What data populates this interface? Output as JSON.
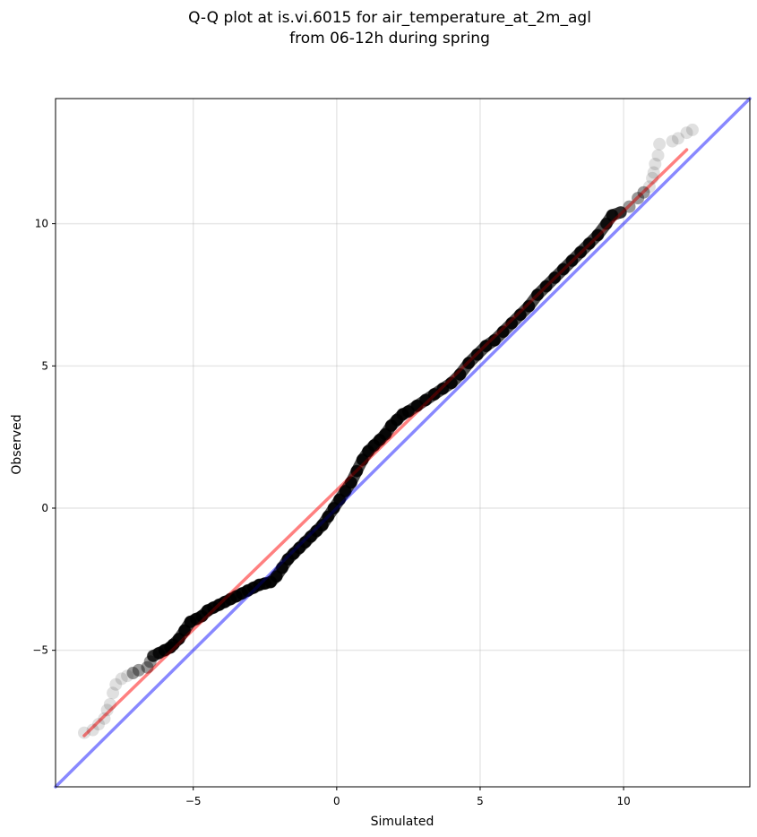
{
  "chart_data": {
    "type": "scatter",
    "title": "Q-Q plot at is.vi.6015 for air_temperature_at_2m_agl",
    "subtitle": "from 06-12h during spring",
    "xlabel": "Simulated",
    "ylabel": "Observed",
    "xlim": [
      -9.8,
      14.4
    ],
    "ylim": [
      -9.8,
      14.4
    ],
    "xticks": [
      -5,
      0,
      5,
      10
    ],
    "yticks": [
      -5,
      0,
      5,
      10
    ],
    "xtick_labels": [
      "−5",
      "0",
      "5",
      "10"
    ],
    "ytick_labels": [
      "−5",
      "0",
      "5",
      "10"
    ],
    "grid": true,
    "series": [
      {
        "kind": "quantile_points",
        "color": "#000000",
        "points": [
          [
            -8.8,
            -7.9
          ],
          [
            -8.5,
            -7.8
          ],
          [
            -8.3,
            -7.6
          ],
          [
            -8.1,
            -7.4
          ],
          [
            -8.0,
            -7.1
          ],
          [
            -7.9,
            -6.9
          ],
          [
            -7.8,
            -6.5
          ],
          [
            -7.7,
            -6.2
          ],
          [
            -7.5,
            -6.0
          ],
          [
            -7.3,
            -5.9
          ],
          [
            -7.1,
            -5.8
          ],
          [
            -6.9,
            -5.7
          ],
          [
            -6.6,
            -5.6
          ],
          [
            -6.5,
            -5.4
          ],
          [
            -6.4,
            -5.2
          ],
          [
            -6.2,
            -5.1
          ],
          [
            -6.0,
            -5.0
          ],
          [
            -5.8,
            -4.9
          ],
          [
            -5.7,
            -4.8
          ],
          [
            -5.5,
            -4.6
          ],
          [
            -5.3,
            -4.3
          ],
          [
            -5.1,
            -4.0
          ],
          [
            -4.9,
            -3.9
          ],
          [
            -4.7,
            -3.8
          ],
          [
            -4.5,
            -3.6
          ],
          [
            -4.3,
            -3.5
          ],
          [
            -4.1,
            -3.4
          ],
          [
            -3.9,
            -3.3
          ],
          [
            -3.7,
            -3.2
          ],
          [
            -3.5,
            -3.1
          ],
          [
            -3.3,
            -3.0
          ],
          [
            -3.1,
            -2.9
          ],
          [
            -2.9,
            -2.8
          ],
          [
            -2.7,
            -2.7
          ],
          [
            -2.5,
            -2.65
          ],
          [
            -2.3,
            -2.6
          ],
          [
            -2.1,
            -2.4
          ],
          [
            -1.9,
            -2.1
          ],
          [
            -1.7,
            -1.8
          ],
          [
            -1.5,
            -1.6
          ],
          [
            -1.3,
            -1.4
          ],
          [
            -1.1,
            -1.2
          ],
          [
            -0.9,
            -1.0
          ],
          [
            -0.7,
            -0.8
          ],
          [
            -0.5,
            -0.6
          ],
          [
            -0.3,
            -0.3
          ],
          [
            -0.1,
            0.0
          ],
          [
            0.1,
            0.3
          ],
          [
            0.3,
            0.6
          ],
          [
            0.5,
            0.9
          ],
          [
            0.7,
            1.3
          ],
          [
            0.9,
            1.7
          ],
          [
            1.1,
            2.0
          ],
          [
            1.3,
            2.2
          ],
          [
            1.5,
            2.4
          ],
          [
            1.7,
            2.6
          ],
          [
            1.9,
            2.9
          ],
          [
            2.1,
            3.1
          ],
          [
            2.3,
            3.3
          ],
          [
            2.5,
            3.4
          ],
          [
            2.8,
            3.6
          ],
          [
            3.1,
            3.8
          ],
          [
            3.4,
            4.0
          ],
          [
            3.7,
            4.2
          ],
          [
            4.0,
            4.4
          ],
          [
            4.3,
            4.7
          ],
          [
            4.6,
            5.1
          ],
          [
            4.9,
            5.4
          ],
          [
            5.2,
            5.7
          ],
          [
            5.5,
            5.9
          ],
          [
            5.8,
            6.2
          ],
          [
            6.1,
            6.5
          ],
          [
            6.4,
            6.8
          ],
          [
            6.7,
            7.1
          ],
          [
            7.0,
            7.5
          ],
          [
            7.3,
            7.8
          ],
          [
            7.6,
            8.1
          ],
          [
            7.9,
            8.4
          ],
          [
            8.2,
            8.7
          ],
          [
            8.5,
            9.0
          ],
          [
            8.8,
            9.3
          ],
          [
            9.1,
            9.6
          ],
          [
            9.4,
            10.0
          ],
          [
            9.6,
            10.3
          ],
          [
            9.9,
            10.4
          ],
          [
            10.2,
            10.6
          ],
          [
            10.5,
            10.9
          ],
          [
            10.7,
            11.1
          ],
          [
            10.9,
            11.3
          ],
          [
            11.0,
            11.6
          ],
          [
            11.05,
            11.8
          ],
          [
            11.1,
            12.1
          ],
          [
            11.2,
            12.4
          ],
          [
            11.25,
            12.8
          ],
          [
            11.7,
            12.9
          ],
          [
            11.9,
            13.0
          ],
          [
            12.2,
            13.2
          ],
          [
            12.4,
            13.3
          ]
        ]
      },
      {
        "kind": "fit_line",
        "color": "#ff0000",
        "points": [
          [
            -8.8,
            -8.0
          ],
          [
            12.2,
            12.6
          ]
        ]
      },
      {
        "kind": "identity_line",
        "color": "#0000ff",
        "points": [
          [
            -9.8,
            -9.8
          ],
          [
            14.4,
            14.4
          ]
        ]
      }
    ]
  }
}
